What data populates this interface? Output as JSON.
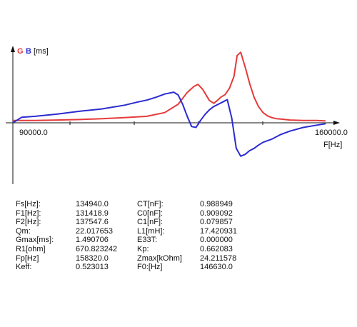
{
  "colors": {
    "G": "#e53a3a",
    "B": "#2b2bd0",
    "axis": "#111111",
    "background": "#ffffff"
  },
  "legend": {
    "g": "G",
    "b": "B",
    "unit": "[ms]"
  },
  "chart_data": {
    "type": "line",
    "title": "",
    "xlabel": "F[Hz]",
    "ylabel": "G B [ms]",
    "x_tick_labels": [
      "90000.0",
      "160000.0"
    ],
    "xlim": [
      90000.0,
      160000.0
    ],
    "ylim": [
      -0.8,
      1.6
    ],
    "grid": false,
    "series": [
      {
        "name": "G",
        "color": "#e53a3a",
        "x": [
          90000,
          95000,
          100000,
          105000,
          110000,
          115000,
          120000,
          124000,
          127000,
          129000,
          130500,
          131419,
          132500,
          134000,
          135000,
          136000,
          136500,
          137548,
          138500,
          139500,
          140200,
          141000,
          142000,
          143000,
          144000,
          145000,
          146000,
          147000,
          148000,
          149000,
          150000,
          152000,
          155000,
          158000,
          160000
        ],
        "y": [
          0.05,
          0.05,
          0.06,
          0.07,
          0.09,
          0.11,
          0.14,
          0.22,
          0.4,
          0.65,
          0.78,
          0.83,
          0.72,
          0.48,
          0.42,
          0.5,
          0.55,
          0.61,
          0.75,
          1.0,
          1.45,
          1.52,
          1.2,
          0.85,
          0.55,
          0.35,
          0.22,
          0.15,
          0.11,
          0.09,
          0.08,
          0.06,
          0.05,
          0.05,
          0.04
        ]
      },
      {
        "name": "B",
        "color": "#2b2bd0",
        "x": [
          90000,
          92000,
          95000,
          100000,
          105000,
          110000,
          115000,
          118000,
          120000,
          122000,
          124000,
          126000,
          127000,
          128000,
          129000,
          130000,
          131000,
          132000,
          133000,
          134000,
          134940,
          136000,
          137000,
          138000,
          139000,
          140000,
          141000,
          142000,
          143000,
          144000,
          145000,
          146000,
          148000,
          150000,
          152000,
          155000,
          158000,
          160000
        ],
        "y": [
          0.0,
          0.12,
          0.14,
          0.19,
          0.25,
          0.3,
          0.38,
          0.45,
          0.49,
          0.55,
          0.62,
          0.66,
          0.6,
          0.4,
          0.15,
          -0.08,
          -0.1,
          0.05,
          0.18,
          0.28,
          0.35,
          0.4,
          0.45,
          0.5,
          0.1,
          -0.55,
          -0.72,
          -0.68,
          -0.6,
          -0.55,
          -0.48,
          -0.42,
          -0.35,
          -0.25,
          -0.18,
          -0.1,
          -0.05,
          -0.02
        ]
      }
    ]
  },
  "params": [
    {
      "l1": "Fs[Hz]:",
      "v1": "134940.0",
      "l2": "CT[nF]:",
      "v2": "0.988949"
    },
    {
      "l1": "F1[Hz]:",
      "v1": "131418.9",
      "l2": "C0[nF]:",
      "v2": "0.909092"
    },
    {
      "l1": "F2[Hz]:",
      "v1": "137547.6",
      "l2": "C1[nF]:",
      "v2": "0.079857"
    },
    {
      "l1": "Qm:",
      "v1": "22.017653",
      "l2": "L1[mH]:",
      "v2": "17.420931"
    },
    {
      "l1": "Gmax[ms]:",
      "v1": "1.490706",
      "l2": "E33T:",
      "v2": "0.000000"
    },
    {
      "l1": "R1[ohm]",
      "v1": "670.823242",
      "l2": "Kp:",
      "v2": "0.662083"
    },
    {
      "l1": "Fp[Hz]",
      "v1": "158320.0",
      "l2": "Zmax[kOhm]",
      "v2": "24.211578"
    },
    {
      "l1": "Keff:",
      "v1": "0.523013",
      "l2": "F0:[Hz]",
      "v2": "146630.0"
    }
  ]
}
